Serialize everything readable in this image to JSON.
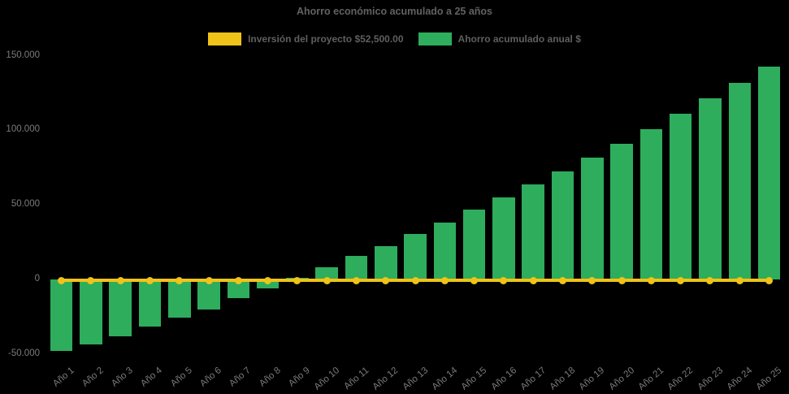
{
  "title": "Ahorro económico acumulado a 25 años",
  "legend": {
    "items": [
      {
        "label": "Inversión del proyecto $52,500.00",
        "swatch": "yellow-rect-swatch",
        "color": "#EFC319"
      },
      {
        "label": "Ahorro acumulado anual $",
        "swatch": "green-rect-swatch",
        "color": "#2EAD5C"
      }
    ]
  },
  "chart_data": {
    "type": "bar",
    "title": "Ahorro económico acumulado a 25 años",
    "categories": [
      "Año 1",
      "Año 2",
      "Año 3",
      "Año 4",
      "Año 5",
      "Año 6",
      "Año 7",
      "Año 8",
      "Año 9",
      "Año 10",
      "Año 11",
      "Año 12",
      "Año 13",
      "Año 14",
      "Año 15",
      "Año 16",
      "Año 17",
      "Año 18",
      "Año 19",
      "Año 20",
      "Año 21",
      "Año 22",
      "Año 23",
      "Año 24",
      "Año 25"
    ],
    "series": [
      {
        "name": "Ahorro acumulado anual $",
        "type": "bar",
        "color": "#2EAD5C",
        "values": [
          -48000,
          -43700,
          -38300,
          -31800,
          -25600,
          -20000,
          -12700,
          -5800,
          1000,
          8000,
          15800,
          22500,
          30700,
          38300,
          46800,
          55200,
          63700,
          72400,
          81700,
          90800,
          100900,
          111100,
          121300,
          131600,
          142700
        ]
      },
      {
        "name": "Inversión del proyecto $52,500.00",
        "type": "line",
        "color": "#EFC319",
        "marker": "circle",
        "values": [
          0,
          0,
          0,
          0,
          0,
          0,
          0,
          0,
          0,
          0,
          0,
          0,
          0,
          0,
          0,
          0,
          0,
          0,
          0,
          0,
          0,
          0,
          0,
          0,
          0
        ]
      }
    ],
    "ylim": [
      -50000,
      150000
    ],
    "yticks": [
      {
        "value": 150000,
        "label": "150.000"
      },
      {
        "value": 100000,
        "label": "100.000"
      },
      {
        "value": 50000,
        "label": "50.000"
      },
      {
        "value": 0,
        "label": "0"
      },
      {
        "value": -50000,
        "label": "-50.000"
      }
    ],
    "grid": false,
    "legend_position": "top-center",
    "background": "#000000"
  },
  "colors": {
    "background": "#000000",
    "bar_green": "#2EAD5C",
    "line_yellow": "#EFC319",
    "title_text": "#616161",
    "legend_text": "#5F5F5F",
    "axis_text": "#7B7B7B"
  }
}
